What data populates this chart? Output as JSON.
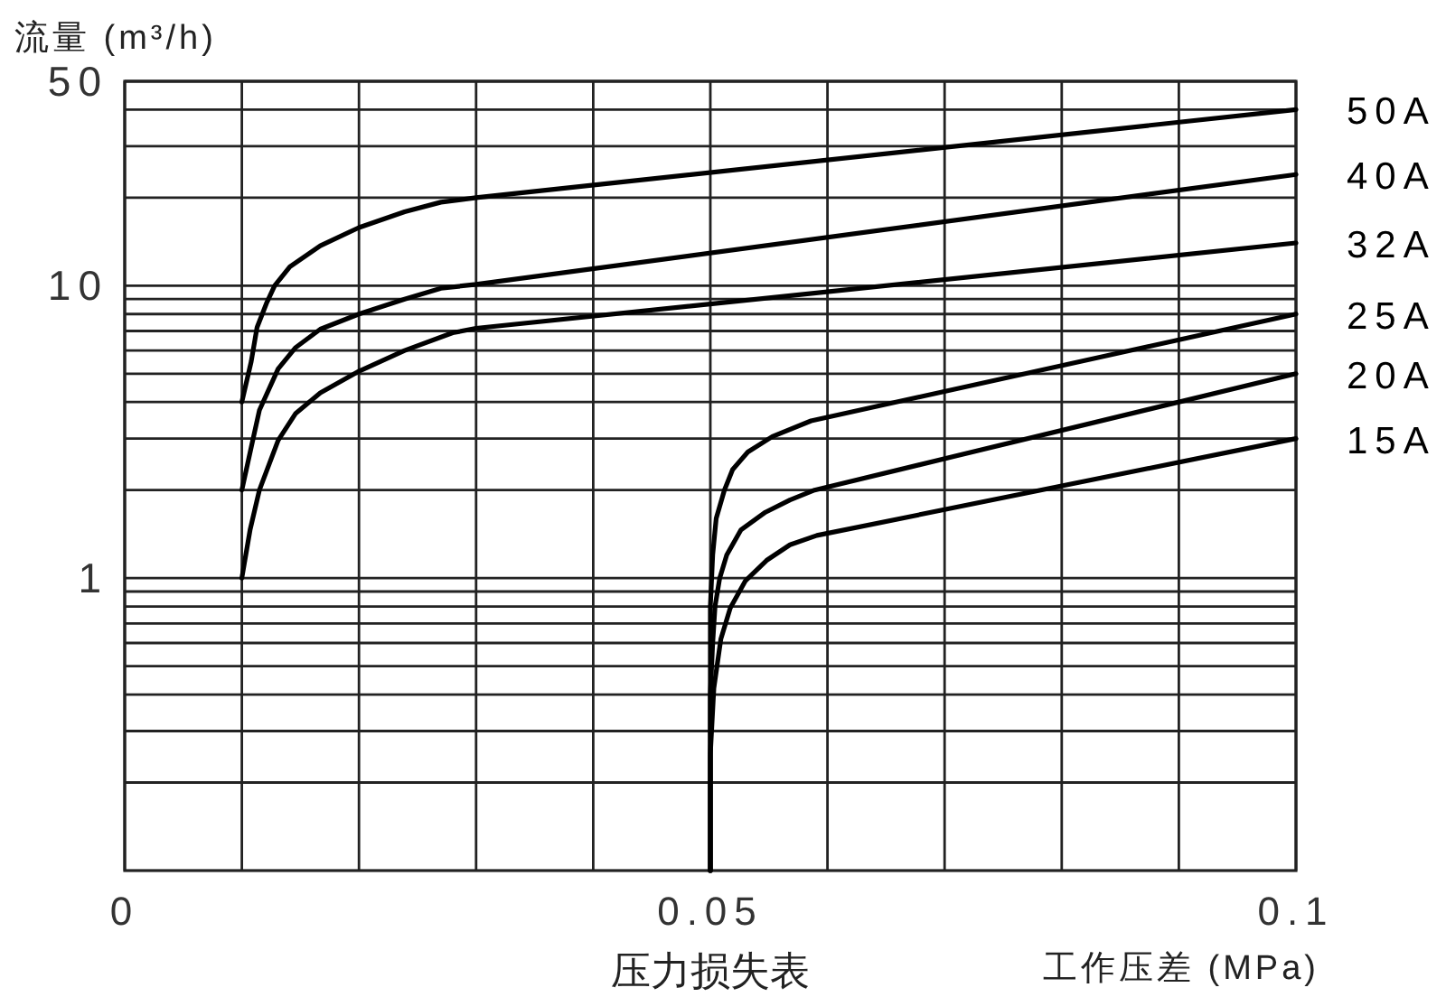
{
  "chart_data": {
    "type": "line",
    "title": "压力损失表",
    "xlabel": "工作压差 (MPa)",
    "ylabel": "流量 (m³/h)",
    "xlim": [
      0,
      0.1
    ],
    "xticks": [
      0,
      {
        "value": 0.01,
        "label": null
      },
      {
        "value": 0.02,
        "label": null
      },
      {
        "value": 0.03,
        "label": null
      },
      {
        "value": 0.04,
        "label": null
      },
      0.05,
      {
        "value": 0.06,
        "label": null
      },
      {
        "value": 0.07,
        "label": null
      },
      {
        "value": 0.08,
        "label": null
      },
      {
        "value": 0.09,
        "label": null
      },
      0.1
    ],
    "ylim": [
      0.1,
      50
    ],
    "yticks": [
      {
        "value": 0.2,
        "label": null
      },
      {
        "value": 0.3,
        "label": null
      },
      {
        "value": 0.4,
        "label": null
      },
      {
        "value": 0.5,
        "label": null
      },
      {
        "value": 0.6,
        "label": null
      },
      {
        "value": 0.7,
        "label": null
      },
      {
        "value": 0.8,
        "label": null
      },
      {
        "value": 0.9,
        "label": null
      },
      1,
      {
        "value": 2,
        "label": null
      },
      {
        "value": 3,
        "label": null
      },
      {
        "value": 4,
        "label": null
      },
      {
        "value": 5,
        "label": null
      },
      {
        "value": 6,
        "label": null
      },
      {
        "value": 7,
        "label": null
      },
      {
        "value": 8,
        "label": null
      },
      {
        "value": 9,
        "label": null
      },
      10,
      {
        "value": 20,
        "label": null
      },
      {
        "value": 30,
        "label": null
      },
      {
        "value": 40,
        "label": null
      },
      50
    ],
    "log": true,
    "grid": true,
    "legend": false,
    "line_style": "solid",
    "series": [
      {
        "name": "50A",
        "color": "#000000",
        "x": [
          0.01,
          0.0108,
          0.0113,
          0.0121,
          0.0128,
          0.0141,
          0.0167,
          0.02,
          0.0239,
          0.027,
          0.03,
          0.1
        ],
        "values": [
          4,
          5.5,
          7.2,
          8.7,
          10,
          11.6,
          13.7,
          15.8,
          17.9,
          19.3,
          20,
          40
        ]
      },
      {
        "name": "40A",
        "color": "#000000",
        "x": [
          0.01,
          0.0108,
          0.0115,
          0.0131,
          0.0146,
          0.0167,
          0.02,
          0.0239,
          0.027,
          0.03,
          0.1
        ],
        "values": [
          2,
          2.8,
          3.75,
          5.2,
          6.15,
          7.1,
          8,
          9,
          9.8,
          10.1,
          24
        ]
      },
      {
        "name": "32A",
        "color": "#000000",
        "x": [
          0.01,
          0.0107,
          0.0115,
          0.0131,
          0.0146,
          0.0167,
          0.02,
          0.0239,
          0.028,
          0.03,
          0.1
        ],
        "values": [
          1,
          1.46,
          2,
          2.96,
          3.66,
          4.3,
          5.1,
          6,
          6.9,
          7.15,
          14
        ]
      },
      {
        "name": "25A",
        "color": "#000000",
        "x": [
          0.05,
          0.05,
          0.0502,
          0.0505,
          0.0512,
          0.0519,
          0.0532,
          0.0553,
          0.0586,
          0.1
        ],
        "values": [
          0.1,
          0.8,
          1.2,
          1.6,
          2.0,
          2.35,
          2.7,
          3.05,
          3.45,
          8
        ]
      },
      {
        "name": "20A",
        "color": "#000000",
        "x": [
          0.05,
          0.05,
          0.0502,
          0.0504,
          0.0508,
          0.0514,
          0.0526,
          0.0547,
          0.0568,
          0.0589,
          0.1
        ],
        "values": [
          0.1,
          0.4,
          0.6,
          0.8,
          1.0,
          1.2,
          1.46,
          1.68,
          1.85,
          2,
          5
        ]
      },
      {
        "name": "15A",
        "color": "#000000",
        "x": [
          0.05,
          0.05,
          0.0503,
          0.0509,
          0.0517,
          0.053,
          0.0548,
          0.0568,
          0.0591,
          0.1
        ],
        "values": [
          0.1,
          0.25,
          0.42,
          0.62,
          0.79,
          0.98,
          1.15,
          1.3,
          1.4,
          3
        ]
      }
    ]
  }
}
